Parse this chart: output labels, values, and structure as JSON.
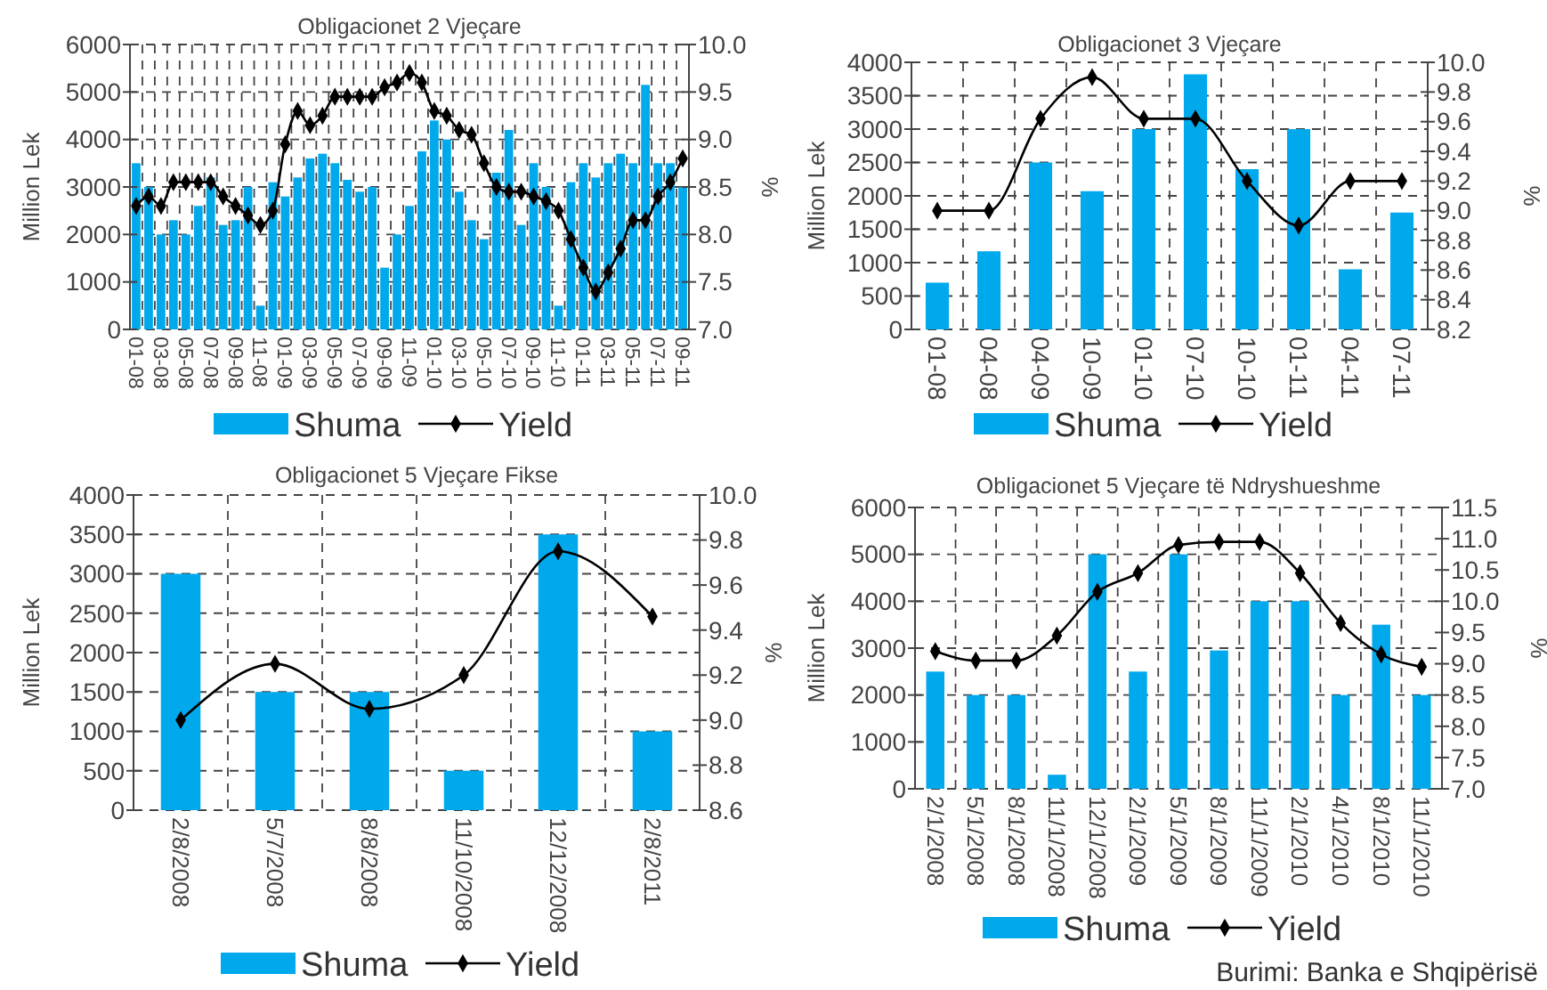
{
  "chart_data": [
    {
      "type": "bar",
      "title": "Obligacionet 2 Vjeçare",
      "ylabel": "Million Lek",
      "y2label": "%",
      "categories": [
        "01-08",
        null,
        "03-08",
        null,
        "05-08",
        null,
        "07-08",
        null,
        "09-08",
        null,
        "11-08",
        null,
        "01-09",
        null,
        "03-09",
        null,
        "05-09",
        null,
        "07-09",
        null,
        "09-09",
        null,
        "11-09",
        null,
        "01-10",
        null,
        "03-10",
        null,
        "05-10",
        null,
        "07-10",
        null,
        "09-10",
        null,
        "11-10",
        null,
        "01-11",
        null,
        "03-11",
        null,
        "05-11",
        null,
        "07-11",
        null,
        "09-11"
      ],
      "series": [
        {
          "name": "Shuma",
          "color": "#00a9ec",
          "values": [
            3500,
            3000,
            2000,
            2300,
            2000,
            2600,
            3200,
            2200,
            2300,
            3000,
            500,
            3100,
            2800,
            3200,
            3600,
            3700,
            3500,
            3150,
            2900,
            3000,
            1300,
            2000,
            2600,
            3750,
            4400,
            4000,
            2900,
            2300,
            1900,
            3300,
            4200,
            2200,
            3500,
            3000,
            500,
            3100,
            3500,
            3200,
            3500,
            3700,
            3500,
            5150,
            3500,
            3500,
            3000
          ]
        },
        {
          "name": "Yield",
          "type": "line",
          "axis": "y2",
          "color": "#000000",
          "values": [
            8.3,
            8.4,
            8.3,
            8.55,
            8.55,
            8.55,
            8.55,
            8.4,
            8.3,
            8.2,
            8.1,
            8.25,
            8.95,
            9.3,
            9.15,
            9.25,
            9.45,
            9.45,
            9.45,
            9.45,
            9.55,
            9.6,
            9.7,
            9.6,
            9.3,
            9.25,
            9.1,
            9.05,
            8.75,
            8.5,
            8.45,
            8.45,
            8.4,
            8.35,
            8.25,
            7.95,
            7.65,
            7.4,
            7.6,
            7.85,
            8.15,
            8.15,
            8.4,
            8.55,
            8.8
          ]
        }
      ],
      "ylim": [
        0,
        6000
      ],
      "yticks": [
        0,
        1000,
        2000,
        3000,
        4000,
        5000,
        6000
      ],
      "y2lim": [
        7,
        10
      ],
      "y2ticks": [
        {
          "value": 7,
          "label": "7.0"
        },
        7.5,
        {
          "value": 8,
          "label": "8.0"
        },
        8.5,
        {
          "value": 9,
          "label": "9.0"
        },
        9.5,
        {
          "value": 10,
          "label": "10.0"
        }
      ],
      "grid": true,
      "legend": "bottom",
      "marker": "diamond"
    },
    {
      "type": "bar",
      "title": "Obligacionet 3 Vjeçare",
      "ylabel": "Million Lek",
      "y2label": "%",
      "categories": [
        "01-08",
        "04-08",
        "04-09",
        "10-09",
        "01-10",
        "07-10",
        "10-10",
        "01-11",
        "04-11",
        "07-11"
      ],
      "series": [
        {
          "name": "Shuma",
          "color": "#00a9ec",
          "values": [
            700,
            1170,
            2500,
            2070,
            3000,
            3820,
            2400,
            3000,
            900,
            1750
          ]
        },
        {
          "name": "Yield",
          "type": "line",
          "axis": "y2",
          "color": "#000000",
          "values": [
            9.0,
            9.0,
            9.62,
            9.9,
            9.62,
            9.62,
            9.2,
            8.9,
            9.2,
            9.2
          ]
        }
      ],
      "ylim": [
        0,
        4000
      ],
      "yticks": [
        0,
        500,
        1000,
        1500,
        2000,
        2500,
        3000,
        3500,
        4000
      ],
      "y2lim": [
        8.2,
        10
      ],
      "y2ticks": [
        8.2,
        8.4,
        8.6,
        8.8,
        {
          "value": 9,
          "label": "9.0"
        },
        9.2,
        9.4,
        9.6,
        9.8,
        {
          "value": 10,
          "label": "10.0"
        }
      ],
      "grid": true,
      "legend": "bottom",
      "marker": "diamond"
    },
    {
      "type": "bar",
      "title": "Obligacionet 5 Vjeçare Fikse",
      "ylabel": "Million Lek",
      "y2label": "%",
      "categories": [
        "2/8/2008",
        "5/7/2008",
        "8/8/2008",
        "11/10/2008",
        "12/12/2008",
        "2/8/2011"
      ],
      "series": [
        {
          "name": "Shuma",
          "color": "#00a9ec",
          "values": [
            3000,
            1500,
            1500,
            500,
            3500,
            1000
          ]
        },
        {
          "name": "Yield",
          "type": "line",
          "axis": "y2",
          "color": "#000000",
          "values": [
            9.0,
            9.25,
            9.05,
            9.2,
            9.75,
            9.46
          ]
        }
      ],
      "ylim": [
        0,
        4000
      ],
      "yticks": [
        0,
        500,
        1000,
        1500,
        2000,
        2500,
        3000,
        3500,
        4000
      ],
      "y2lim": [
        8.6,
        10
      ],
      "y2ticks": [
        8.6,
        8.8,
        {
          "value": 9,
          "label": "9.0"
        },
        9.2,
        9.4,
        9.6,
        9.8,
        {
          "value": 10,
          "label": "10.0"
        }
      ],
      "grid": true,
      "legend": "bottom",
      "marker": "diamond"
    },
    {
      "type": "bar",
      "title": "Obligacionet 5 Vjeçare të Ndryshueshme",
      "ylabel": "Million Lek",
      "y2label": "%",
      "categories": [
        "2/1/2008",
        "5/1/2008",
        "8/1/2008",
        "11/1/2008",
        "12/1/2008",
        "2/1/2009",
        "5/1/2009",
        "8/1/2009",
        "11/1/2009",
        "2/1/2010",
        "4/1/2010",
        "8/1/2010",
        "11/1/2010"
      ],
      "series": [
        {
          "name": "Shuma",
          "color": "#00a9ec",
          "values": [
            2500,
            2000,
            2000,
            300,
            5000,
            2500,
            5000,
            2950,
            4000,
            4000,
            2000,
            3500,
            2000
          ]
        },
        {
          "name": "Yield",
          "type": "line",
          "axis": "y2",
          "color": "#000000",
          "values": [
            9.2,
            9.05,
            9.05,
            9.45,
            10.15,
            10.45,
            10.9,
            10.95,
            10.95,
            10.45,
            9.65,
            9.15,
            8.95
          ]
        }
      ],
      "ylim": [
        0,
        6000
      ],
      "yticks": [
        0,
        1000,
        2000,
        3000,
        4000,
        5000,
        6000
      ],
      "y2lim": [
        7,
        11.5
      ],
      "y2ticks": [
        {
          "value": 7,
          "label": "7.0"
        },
        7.5,
        {
          "value": 8,
          "label": "8.0"
        },
        8.5,
        {
          "value": 9,
          "label": "9.0"
        },
        9.5,
        {
          "value": 10,
          "label": "10.0"
        },
        10.5,
        {
          "value": 11,
          "label": "11.0"
        },
        11.5
      ],
      "grid": true,
      "legend": "bottom",
      "marker": "diamond",
      "annotations": [
        "Burimi: Banka e Shqipërisë"
      ]
    }
  ]
}
